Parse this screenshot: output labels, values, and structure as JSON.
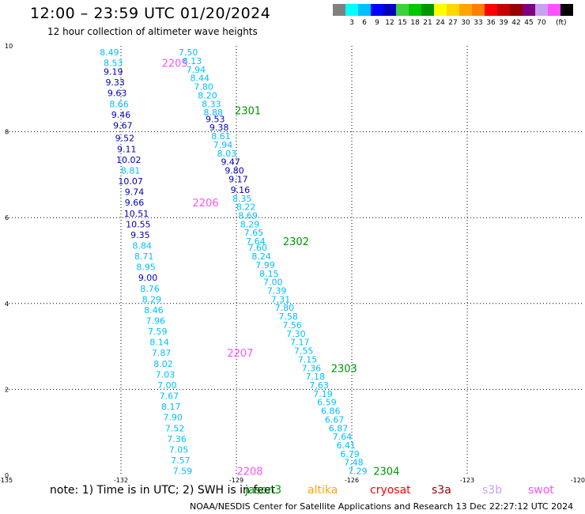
{
  "header": {
    "title": "12:00 – 23:59 UTC 01/20/2024",
    "subtitle": "12 hour collection of altimeter wave heights"
  },
  "colorbar": {
    "colors": [
      "#808080",
      "#00ffff",
      "#00bfff",
      "#0000ff",
      "#0000bf",
      "#3cd23c",
      "#00c800",
      "#009600",
      "#ffff00",
      "#ffd700",
      "#ffa500",
      "#ff7f00",
      "#ff0000",
      "#c80000",
      "#960000",
      "#800080",
      "#c8a0f0",
      "#ff50ff",
      "#000000"
    ],
    "labels": [
      "3",
      "6",
      "9",
      "12",
      "15",
      "18",
      "21",
      "24",
      "27",
      "30",
      "33",
      "36",
      "39",
      "42",
      "45",
      "70"
    ],
    "unit": "(ft)"
  },
  "footer": {
    "note": "note:  1) Time is in UTC;  2) SWH is in feet",
    "satellites": [
      {
        "name": "jason3",
        "color": "#009600"
      },
      {
        "name": "altika",
        "color": "#ffa500"
      },
      {
        "name": "cryosat",
        "color": "#ff0000"
      },
      {
        "name": "s3a",
        "color": "#960000"
      },
      {
        "name": "s3b",
        "color": "#c8a0f0"
      },
      {
        "name": "swot",
        "color": "#ff50ff"
      }
    ],
    "credit": "NOAA/NESDIS Center for Satellite Applications and Research    13 Dec 22:27:12 UTC 2024"
  },
  "chart_data": {
    "type": "scatter",
    "xlim": [
      -135,
      -120
    ],
    "ylim": [
      0,
      10
    ],
    "x_ticks": [
      "-135",
      "-132",
      "-129",
      "-126",
      "-123",
      "-120"
    ],
    "y_ticks": [
      "0",
      "2",
      "4",
      "6",
      "8",
      "10"
    ],
    "grid": true,
    "series": [
      {
        "points": [
          {
            "x": -132.3,
            "y": 9.85,
            "label": "8.49"
          },
          {
            "x": -132.2,
            "y": 9.6,
            "label": "8.53"
          },
          {
            "x": -132.2,
            "y": 9.4,
            "label": "9.19"
          },
          {
            "x": -132.15,
            "y": 9.15,
            "label": "9.33"
          },
          {
            "x": -132.1,
            "y": 8.9,
            "label": "9.63"
          },
          {
            "x": -132.05,
            "y": 8.65,
            "label": "8.66"
          },
          {
            "x": -132.0,
            "y": 8.4,
            "label": "9.46"
          },
          {
            "x": -131.95,
            "y": 8.15,
            "label": "9.67"
          },
          {
            "x": -131.9,
            "y": 7.85,
            "label": "9.52"
          },
          {
            "x": -131.85,
            "y": 7.6,
            "label": "9.11"
          },
          {
            "x": -131.8,
            "y": 7.35,
            "label": "10.02"
          },
          {
            "x": -131.75,
            "y": 7.1,
            "label": "8.81"
          },
          {
            "x": -131.75,
            "y": 6.85,
            "label": "10.07"
          },
          {
            "x": -131.65,
            "y": 6.6,
            "label": "9.74"
          },
          {
            "x": -131.65,
            "y": 6.35,
            "label": "9.66"
          },
          {
            "x": -131.6,
            "y": 6.1,
            "label": "10.51"
          },
          {
            "x": -131.55,
            "y": 5.85,
            "label": "10.55"
          },
          {
            "x": -131.5,
            "y": 5.6,
            "label": "9.35"
          },
          {
            "x": -131.45,
            "y": 5.35,
            "label": "8.84"
          },
          {
            "x": -131.4,
            "y": 5.1,
            "label": "8.71"
          },
          {
            "x": -131.35,
            "y": 4.85,
            "label": "8.95"
          },
          {
            "x": -131.3,
            "y": 4.6,
            "label": "9.00"
          },
          {
            "x": -131.25,
            "y": 4.35,
            "label": "8.76"
          },
          {
            "x": -131.2,
            "y": 4.1,
            "label": "8.29"
          },
          {
            "x": -131.15,
            "y": 3.85,
            "label": "8.46"
          },
          {
            "x": -131.1,
            "y": 3.6,
            "label": "7.96"
          },
          {
            "x": -131.05,
            "y": 3.35,
            "label": "7.59"
          },
          {
            "x": -131.0,
            "y": 3.1,
            "label": "8.14"
          },
          {
            "x": -130.95,
            "y": 2.85,
            "label": "7.87"
          },
          {
            "x": -130.9,
            "y": 2.6,
            "label": "8.02"
          },
          {
            "x": -130.85,
            "y": 2.35,
            "label": "7.03"
          },
          {
            "x": -130.8,
            "y": 2.1,
            "label": "7.00"
          },
          {
            "x": -130.75,
            "y": 1.85,
            "label": "7.67"
          },
          {
            "x": -130.7,
            "y": 1.6,
            "label": "8.17"
          },
          {
            "x": -130.65,
            "y": 1.35,
            "label": "7.90"
          },
          {
            "x": -130.6,
            "y": 1.1,
            "label": "7.52"
          },
          {
            "x": -130.55,
            "y": 0.85,
            "label": "7.36"
          },
          {
            "x": -130.5,
            "y": 0.6,
            "label": "7.05"
          },
          {
            "x": -130.45,
            "y": 0.35,
            "label": "7.57"
          },
          {
            "x": -130.4,
            "y": 0.1,
            "label": "7.59"
          }
        ]
      },
      {
        "points": [
          {
            "x": -130.25,
            "y": 9.85,
            "label": "7.50"
          },
          {
            "x": -130.15,
            "y": 9.65,
            "label": "8.13"
          },
          {
            "x": -130.05,
            "y": 9.45,
            "label": "7.94"
          },
          {
            "x": -129.95,
            "y": 9.25,
            "label": "8.44"
          },
          {
            "x": -129.85,
            "y": 9.05,
            "label": "7.80"
          },
          {
            "x": -129.75,
            "y": 8.85,
            "label": "8.20"
          },
          {
            "x": -129.65,
            "y": 8.65,
            "label": "8.33"
          },
          {
            "x": -129.6,
            "y": 8.45,
            "label": "8.88"
          },
          {
            "x": -129.55,
            "y": 8.3,
            "label": "9.53"
          },
          {
            "x": -129.45,
            "y": 8.1,
            "label": "9.38"
          },
          {
            "x": -129.4,
            "y": 7.9,
            "label": "8.61"
          },
          {
            "x": -129.35,
            "y": 7.7,
            "label": "7.94"
          },
          {
            "x": -129.25,
            "y": 7.5,
            "label": "8.03"
          },
          {
            "x": -129.15,
            "y": 7.3,
            "label": "9.47"
          },
          {
            "x": -129.05,
            "y": 7.1,
            "label": "9.80"
          },
          {
            "x": -128.95,
            "y": 6.9,
            "label": "9.17"
          },
          {
            "x": -128.9,
            "y": 6.65,
            "label": "9.16"
          },
          {
            "x": -128.85,
            "y": 6.45,
            "label": "8.35"
          },
          {
            "x": -128.75,
            "y": 6.25,
            "label": "8.22"
          },
          {
            "x": -128.7,
            "y": 6.05,
            "label": "8.69"
          },
          {
            "x": -128.65,
            "y": 5.85,
            "label": "8.29"
          },
          {
            "x": -128.55,
            "y": 5.65,
            "label": "7.65"
          },
          {
            "x": -128.5,
            "y": 5.45,
            "label": "7.64"
          },
          {
            "x": -128.45,
            "y": 5.3,
            "label": "7.60"
          },
          {
            "x": -128.35,
            "y": 5.1,
            "label": "8.24"
          },
          {
            "x": -128.25,
            "y": 4.9,
            "label": "7.99"
          },
          {
            "x": -128.15,
            "y": 4.7,
            "label": "8.15"
          },
          {
            "x": -128.05,
            "y": 4.5,
            "label": "7.00"
          },
          {
            "x": -127.95,
            "y": 4.3,
            "label": "7.39"
          },
          {
            "x": -127.85,
            "y": 4.1,
            "label": "7.31"
          },
          {
            "x": -127.75,
            "y": 3.9,
            "label": "7.80"
          },
          {
            "x": -127.65,
            "y": 3.7,
            "label": "7.58"
          },
          {
            "x": -127.55,
            "y": 3.5,
            "label": "7.56"
          },
          {
            "x": -127.45,
            "y": 3.3,
            "label": "7.30"
          },
          {
            "x": -127.35,
            "y": 3.1,
            "label": "7.17"
          },
          {
            "x": -127.25,
            "y": 2.9,
            "label": "7.55"
          },
          {
            "x": -127.15,
            "y": 2.7,
            "label": "7.15"
          },
          {
            "x": -127.05,
            "y": 2.5,
            "label": "7.36"
          },
          {
            "x": -126.95,
            "y": 2.3,
            "label": "7.18"
          },
          {
            "x": -126.85,
            "y": 2.1,
            "label": "7.63"
          },
          {
            "x": -126.75,
            "y": 1.9,
            "label": "7.19"
          },
          {
            "x": -126.65,
            "y": 1.7,
            "label": "6.59"
          },
          {
            "x": -126.55,
            "y": 1.5,
            "label": "6.86"
          },
          {
            "x": -126.45,
            "y": 1.3,
            "label": "6.67"
          },
          {
            "x": -126.35,
            "y": 1.1,
            "label": "6.87"
          },
          {
            "x": -126.25,
            "y": 0.9,
            "label": "7.64"
          },
          {
            "x": -126.15,
            "y": 0.7,
            "label": "6.41"
          },
          {
            "x": -126.05,
            "y": 0.5,
            "label": "6.79"
          },
          {
            "x": -125.95,
            "y": 0.3,
            "label": "7.48"
          },
          {
            "x": -125.85,
            "y": 0.1,
            "label": "7.29"
          }
        ]
      }
    ],
    "annotations": [
      {
        "text": "2205",
        "x": -130.6,
        "y": 9.6,
        "color": "#ff50ff"
      },
      {
        "text": "2206",
        "x": -129.8,
        "y": 6.35,
        "color": "#ff50ff"
      },
      {
        "text": "2207",
        "x": -128.9,
        "y": 2.85,
        "color": "#ff50ff"
      },
      {
        "text": "2208",
        "x": -128.65,
        "y": 0.1,
        "color": "#ff50ff"
      },
      {
        "text": "2301",
        "x": -128.7,
        "y": 8.5,
        "color": "#009600"
      },
      {
        "text": "2302",
        "x": -127.45,
        "y": 5.45,
        "color": "#009600"
      },
      {
        "text": "2303",
        "x": -126.2,
        "y": 2.5,
        "color": "#009600"
      },
      {
        "text": "2304",
        "x": -125.1,
        "y": 0.1,
        "color": "#009600"
      }
    ]
  }
}
